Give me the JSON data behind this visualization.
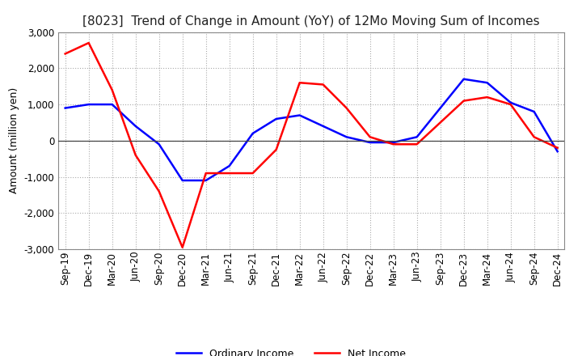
{
  "title": "[8023]  Trend of Change in Amount (YoY) of 12Mo Moving Sum of Incomes",
  "ylabel": "Amount (million yen)",
  "ylim": [
    -3000,
    3000
  ],
  "yticks": [
    -3000,
    -2000,
    -1000,
    0,
    1000,
    2000,
    3000
  ],
  "x_labels": [
    "Sep-19",
    "Dec-19",
    "Mar-20",
    "Jun-20",
    "Sep-20",
    "Dec-20",
    "Mar-21",
    "Jun-21",
    "Sep-21",
    "Dec-21",
    "Mar-22",
    "Jun-22",
    "Sep-22",
    "Dec-22",
    "Mar-23",
    "Jun-23",
    "Sep-23",
    "Dec-23",
    "Mar-24",
    "Jun-24",
    "Sep-24",
    "Dec-24"
  ],
  "ordinary_income": [
    900,
    1000,
    1000,
    400,
    -100,
    -1100,
    -1100,
    -700,
    200,
    600,
    700,
    400,
    100,
    -50,
    -50,
    100,
    900,
    1700,
    1600,
    1050,
    800,
    -300
  ],
  "net_income": [
    2400,
    2700,
    1400,
    -400,
    -1400,
    -2950,
    -900,
    -900,
    -900,
    -250,
    1600,
    1550,
    900,
    100,
    -100,
    -100,
    500,
    1100,
    1200,
    1000,
    100,
    -200
  ],
  "ordinary_color": "#0000ff",
  "net_color": "#ff0000",
  "background_color": "#ffffff",
  "grid_color": "#aaaaaa",
  "title_fontsize": 11,
  "ylabel_fontsize": 9,
  "tick_fontsize": 8.5,
  "legend_fontsize": 9
}
